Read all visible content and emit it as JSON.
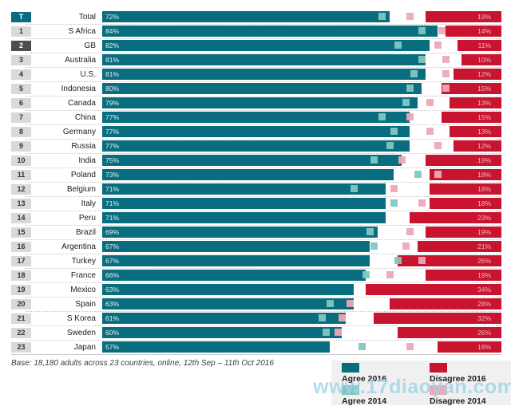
{
  "chart_data": {
    "type": "bar",
    "orientation": "horizontal",
    "unit": "%",
    "x_range": [
      0,
      100
    ],
    "series_names": [
      "Agree 2016",
      "Disagree 2016",
      "Agree 2014",
      "Disagree 2014"
    ],
    "rows": [
      {
        "rank": "T",
        "country": "Total",
        "agree_2016": 72,
        "disagree_2016": 19,
        "agree_2014": 70,
        "disagree_2014": 23,
        "rank_style": "teal"
      },
      {
        "rank": "1",
        "country": "S Africa",
        "agree_2016": 84,
        "disagree_2016": 14,
        "agree_2014": 80,
        "disagree_2014": 15,
        "rank_style": "gray"
      },
      {
        "rank": "2",
        "country": "GB",
        "agree_2016": 82,
        "disagree_2016": 11,
        "agree_2014": 74,
        "disagree_2014": 16,
        "rank_style": "dark"
      },
      {
        "rank": "3",
        "country": "Australia",
        "agree_2016": 81,
        "disagree_2016": 10,
        "agree_2014": 80,
        "disagree_2014": 14,
        "rank_style": "gray"
      },
      {
        "rank": "4",
        "country": "U.S.",
        "agree_2016": 81,
        "disagree_2016": 12,
        "agree_2014": 78,
        "disagree_2014": 14,
        "rank_style": "gray"
      },
      {
        "rank": "5",
        "country": "Indonesia",
        "agree_2016": 80,
        "disagree_2016": 15,
        "agree_2014": 77,
        "disagree_2014": 14,
        "rank_style": "gray"
      },
      {
        "rank": "6",
        "country": "Canada",
        "agree_2016": 79,
        "disagree_2016": 13,
        "agree_2014": 76,
        "disagree_2014": 18,
        "rank_style": "gray"
      },
      {
        "rank": "7",
        "country": "China",
        "agree_2016": 77,
        "disagree_2016": 15,
        "agree_2014": 70,
        "disagree_2014": 23,
        "rank_style": "gray"
      },
      {
        "rank": "8",
        "country": "Germany",
        "agree_2016": 77,
        "disagree_2016": 13,
        "agree_2014": 73,
        "disagree_2014": 18,
        "rank_style": "gray"
      },
      {
        "rank": "9",
        "country": "Russia",
        "agree_2016": 77,
        "disagree_2016": 12,
        "agree_2014": 72,
        "disagree_2014": 16,
        "rank_style": "gray"
      },
      {
        "rank": "10",
        "country": "India",
        "agree_2016": 75,
        "disagree_2016": 19,
        "agree_2014": 68,
        "disagree_2014": 25,
        "rank_style": "gray"
      },
      {
        "rank": "11",
        "country": "Poland",
        "agree_2016": 73,
        "disagree_2016": 18,
        "agree_2014": 79,
        "disagree_2014": 16,
        "rank_style": "gray"
      },
      {
        "rank": "12",
        "country": "Belgium",
        "agree_2016": 71,
        "disagree_2016": 18,
        "agree_2014": 63,
        "disagree_2014": 27,
        "rank_style": "gray"
      },
      {
        "rank": "13",
        "country": "Italy",
        "agree_2016": 71,
        "disagree_2016": 18,
        "agree_2014": 73,
        "disagree_2014": 20,
        "rank_style": "gray"
      },
      {
        "rank": "14",
        "country": "Peru",
        "agree_2016": 71,
        "disagree_2016": 23,
        "agree_2014": null,
        "disagree_2014": null,
        "rank_style": "gray"
      },
      {
        "rank": "15",
        "country": "Brazil",
        "agree_2016": 69,
        "disagree_2016": 19,
        "agree_2014": 67,
        "disagree_2014": 23,
        "rank_style": "gray"
      },
      {
        "rank": "16",
        "country": "Argentina",
        "agree_2016": 67,
        "disagree_2016": 21,
        "agree_2014": 68,
        "disagree_2014": 24,
        "rank_style": "gray"
      },
      {
        "rank": "17",
        "country": "Turkey",
        "agree_2016": 67,
        "disagree_2016": 26,
        "agree_2014": 74,
        "disagree_2014": 20,
        "rank_style": "gray"
      },
      {
        "rank": "18",
        "country": "France",
        "agree_2016": 66,
        "disagree_2016": 19,
        "agree_2014": 66,
        "disagree_2014": 28,
        "rank_style": "gray"
      },
      {
        "rank": "19",
        "country": "Mexico",
        "agree_2016": 63,
        "disagree_2016": 34,
        "agree_2014": null,
        "disagree_2014": null,
        "rank_style": "gray"
      },
      {
        "rank": "20",
        "country": "Spain",
        "agree_2016": 63,
        "disagree_2016": 28,
        "agree_2014": 57,
        "disagree_2014": 38,
        "rank_style": "gray"
      },
      {
        "rank": "21",
        "country": "S Korea",
        "agree_2016": 61,
        "disagree_2016": 32,
        "agree_2014": 55,
        "disagree_2014": 40,
        "rank_style": "gray"
      },
      {
        "rank": "22",
        "country": "Sweden",
        "agree_2016": 60,
        "disagree_2016": 26,
        "agree_2014": 56,
        "disagree_2014": 41,
        "rank_style": "gray"
      },
      {
        "rank": "23",
        "country": "Japan",
        "agree_2016": 57,
        "disagree_2016": 16,
        "agree_2014": 65,
        "disagree_2014": 23,
        "rank_style": "gray"
      }
    ],
    "legend_position": "bottom-right",
    "grid": false
  },
  "legend": {
    "items": [
      {
        "label": "Agree 2016",
        "color": "#086d7e"
      },
      {
        "label": "Disagree 2016",
        "color": "#c9142f"
      },
      {
        "label": "Agree 2014",
        "color": "#82c7c1"
      },
      {
        "label": "Disagree 2014",
        "color": "#eca9b6"
      }
    ]
  },
  "footer": {
    "base_note": "Base: 18,180 adults across 23 countries, online, 12th Sep – 11th Oct 2016"
  },
  "watermark": {
    "text": "www.17diaoyan.com",
    "color": "#9ed4e8"
  },
  "colors": {
    "agree_2016": "#086d7e",
    "disagree_2016": "#c9142f",
    "agree_2014": "#82c7c1",
    "disagree_2014": "#eca9b6",
    "rank_badge": "#d9d9d9",
    "rank_badge_teal": "#086d7e",
    "rank_badge_dark": "#4d4d4d"
  }
}
